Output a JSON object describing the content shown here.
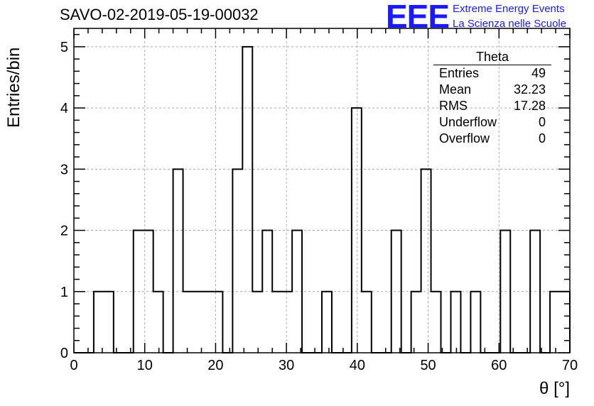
{
  "header": {
    "title": "SAVO-02-2019-05-19-00032",
    "logo_text": "EEE",
    "logo_line1": "Extreme Energy Events",
    "logo_line2": "La Scienza nelle Scuole"
  },
  "stats": {
    "title": "Theta",
    "rows": [
      {
        "label": "Entries",
        "value": "49"
      },
      {
        "label": "Mean",
        "value": "32.23"
      },
      {
        "label": "RMS",
        "value": "17.28"
      },
      {
        "label": "Underflow",
        "value": "0"
      },
      {
        "label": "Overflow",
        "value": "0"
      }
    ]
  },
  "chart_data": {
    "type": "bar",
    "style": "step-histogram",
    "xlabel": "θ [°]",
    "ylabel": "Entries/bin",
    "xlim": [
      0,
      70
    ],
    "ylim": [
      0,
      5.3
    ],
    "bin_width": 1.4,
    "grid": true,
    "x_ticks": [
      0,
      10,
      20,
      30,
      40,
      50,
      60,
      70
    ],
    "y_ticks": [
      0,
      1,
      2,
      3,
      4,
      5
    ],
    "bin_edges": [
      0,
      1.4,
      2.8,
      4.2,
      5.6,
      7.0,
      8.4,
      9.8,
      11.2,
      12.6,
      14.0,
      15.4,
      16.8,
      18.2,
      19.6,
      21.0,
      22.4,
      23.8,
      25.2,
      26.6,
      28.0,
      29.4,
      30.8,
      32.2,
      33.6,
      35.0,
      36.4,
      37.8,
      39.2,
      40.6,
      42.0,
      43.4,
      44.8,
      46.2,
      47.6,
      49.0,
      50.4,
      51.8,
      53.2,
      54.6,
      56.0,
      57.4,
      58.8,
      60.2,
      61.6,
      63.0,
      64.4,
      65.8,
      67.2,
      68.6,
      70.0
    ],
    "values": [
      0,
      0,
      1,
      1,
      0,
      0,
      2,
      2,
      1,
      0,
      3,
      1,
      1,
      1,
      1,
      0,
      3,
      5,
      1,
      2,
      1,
      1,
      2,
      0,
      0,
      1,
      0,
      0,
      4,
      1,
      0,
      0,
      2,
      0,
      1,
      3,
      1,
      0,
      1,
      0,
      1,
      0,
      0,
      2,
      0,
      0,
      2,
      0,
      1,
      1
    ],
    "color": "#000000",
    "grid_color": "#aaaaaa"
  }
}
